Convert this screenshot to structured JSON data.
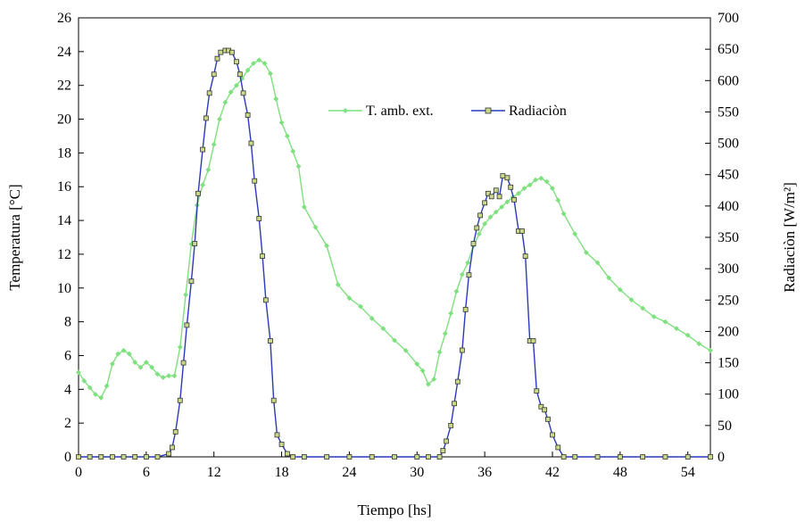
{
  "chart_data": {
    "type": "line",
    "title": "",
    "xlabel": "Tiempo [hs]",
    "ylabel": "Temperatura [°C]",
    "y2label": "Radiaciòn  [W/m²]",
    "xlim": [
      0,
      56
    ],
    "ylim": [
      0,
      26
    ],
    "y2lim": [
      0,
      700
    ],
    "x_ticks": [
      0,
      6,
      12,
      18,
      24,
      30,
      36,
      42,
      48,
      54
    ],
    "y_ticks": [
      0,
      2,
      4,
      6,
      8,
      10,
      12,
      14,
      16,
      18,
      20,
      22,
      24,
      26
    ],
    "y2_ticks": [
      0,
      50,
      100,
      150,
      200,
      250,
      300,
      350,
      400,
      450,
      500,
      550,
      600,
      650,
      700
    ],
    "grid": false,
    "legend_position": "top-right",
    "series": [
      {
        "name": "T. amb. ext.",
        "axis": "left",
        "color": "#7ee07e",
        "marker": "diamond",
        "x": [
          0,
          0.5,
          1,
          1.5,
          2,
          2.5,
          3,
          3.5,
          4,
          4.5,
          5,
          5.5,
          6,
          6.5,
          7,
          7.5,
          8,
          8.5,
          9,
          9.5,
          10,
          10.5,
          11,
          11.5,
          12,
          12.5,
          13,
          13.5,
          14,
          14.5,
          15,
          15.5,
          16,
          16.5,
          17,
          17.5,
          18,
          18.5,
          19,
          19.5,
          20,
          21,
          22,
          23,
          24,
          25,
          26,
          27,
          28,
          29,
          30,
          30.5,
          31,
          31.5,
          32,
          32.5,
          33,
          33.5,
          34,
          34.5,
          35,
          35.5,
          36,
          36.5,
          37,
          37.5,
          38,
          38.5,
          39,
          39.5,
          40,
          40.5,
          41,
          41.5,
          42,
          42.5,
          43,
          44,
          45,
          46,
          47,
          48,
          49,
          50,
          51,
          52,
          53,
          54,
          55,
          56
        ],
        "values": [
          5.0,
          4.5,
          4.1,
          3.7,
          3.5,
          4.2,
          5.5,
          6.1,
          6.3,
          6.1,
          5.6,
          5.3,
          5.6,
          5.3,
          4.9,
          4.7,
          4.8,
          4.8,
          6.5,
          9.6,
          12.6,
          14.9,
          16.1,
          17.0,
          18.5,
          20.0,
          21.0,
          21.6,
          22.0,
          22.4,
          22.9,
          23.3,
          23.5,
          23.3,
          22.7,
          21.2,
          19.8,
          19.0,
          18.1,
          17.2,
          14.8,
          13.6,
          12.5,
          10.2,
          9.4,
          8.9,
          8.2,
          7.6,
          6.9,
          6.3,
          5.5,
          5.1,
          4.3,
          4.6,
          6.2,
          7.3,
          8.5,
          9.8,
          10.8,
          11.5,
          12.5,
          13.2,
          13.8,
          14.2,
          14.5,
          14.8,
          15.1,
          15.4,
          15.6,
          15.9,
          16.1,
          16.4,
          16.5,
          16.3,
          15.9,
          15.2,
          14.4,
          13.2,
          12.1,
          11.5,
          10.6,
          9.9,
          9.3,
          8.8,
          8.3,
          8.0,
          7.6,
          7.2,
          6.7,
          6.3
        ]
      },
      {
        "name": "Radiaciòn",
        "axis": "right",
        "color": "#2a3ab8",
        "marker": "square",
        "marker_fill": "#c9d98a",
        "x": [
          0,
          1,
          2,
          3,
          4,
          5,
          6,
          7,
          8,
          8.3,
          8.6,
          9,
          9.3,
          9.6,
          10,
          10.3,
          10.6,
          11,
          11.3,
          11.6,
          12,
          12.3,
          12.6,
          13,
          13.3,
          13.6,
          14,
          14.3,
          14.6,
          15,
          15.3,
          15.6,
          16,
          16.3,
          16.6,
          17,
          17.3,
          17.6,
          18,
          18.5,
          19,
          20,
          22,
          24,
          26,
          28,
          30,
          31,
          32,
          32.3,
          32.6,
          33,
          33.3,
          33.6,
          34,
          34.3,
          34.6,
          35,
          35.3,
          35.6,
          36,
          36.3,
          36.6,
          37,
          37.3,
          37.6,
          38,
          38.3,
          38.6,
          39,
          39.3,
          39.6,
          40,
          40.3,
          40.6,
          41,
          41.3,
          41.6,
          42,
          42.5,
          43,
          44,
          46,
          48,
          50,
          52,
          54,
          56
        ],
        "values": [
          0,
          0,
          0,
          0,
          0,
          0,
          0,
          0,
          5,
          15,
          40,
          90,
          150,
          210,
          280,
          340,
          420,
          490,
          540,
          580,
          610,
          635,
          645,
          648,
          648,
          645,
          630,
          610,
          580,
          545,
          500,
          440,
          380,
          320,
          250,
          185,
          90,
          35,
          20,
          5,
          0,
          0,
          0,
          0,
          0,
          0,
          0,
          0,
          0,
          10,
          25,
          50,
          85,
          120,
          170,
          235,
          290,
          340,
          365,
          385,
          405,
          420,
          415,
          425,
          415,
          448,
          445,
          430,
          410,
          360,
          360,
          320,
          185,
          185,
          105,
          80,
          75,
          60,
          35,
          15,
          0,
          0,
          0,
          0,
          0,
          0,
          0,
          0
        ]
      }
    ]
  }
}
